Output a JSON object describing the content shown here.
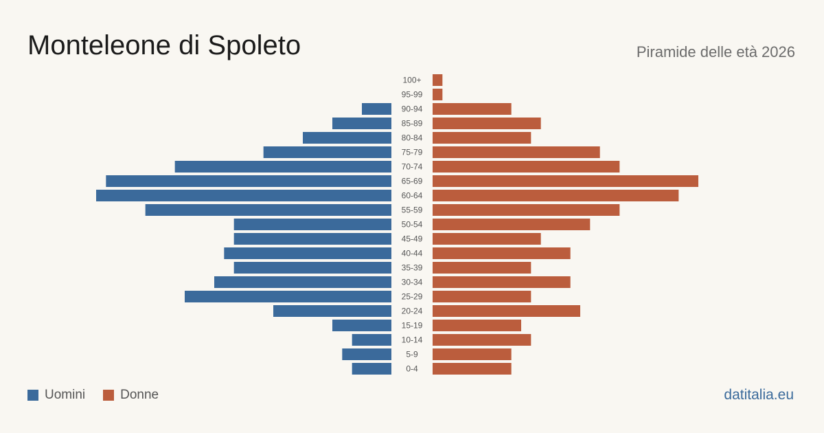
{
  "header": {
    "title": "Monteleone di Spoleto",
    "subtitle": "Piramide delle età 2026"
  },
  "legend": {
    "men_label": "Uomini",
    "women_label": "Donne"
  },
  "footer": {
    "source": "datitalia.eu"
  },
  "colors": {
    "men": "#3b6a9b",
    "women": "#bb5d3d",
    "background": "#f9f7f2"
  },
  "chart_data": {
    "type": "bar",
    "orientation": "horizontal-pyramid",
    "title": "Monteleone di Spoleto",
    "subtitle": "Piramide delle età 2026",
    "categories": [
      "100+",
      "95-99",
      "90-94",
      "85-89",
      "80-84",
      "75-79",
      "70-74",
      "65-69",
      "60-64",
      "55-59",
      "50-54",
      "45-49",
      "40-44",
      "35-39",
      "30-34",
      "25-29",
      "20-24",
      "15-19",
      "10-14",
      "5-9",
      "0-4"
    ],
    "series": [
      {
        "name": "Uomini",
        "side": "left",
        "values": [
          0,
          0,
          3,
          6,
          9,
          13,
          22,
          29,
          30,
          25,
          16,
          16,
          17,
          16,
          18,
          21,
          12,
          6,
          4,
          5,
          4
        ]
      },
      {
        "name": "Donne",
        "side": "right",
        "values": [
          1,
          1,
          8,
          11,
          10,
          17,
          19,
          27,
          25,
          19,
          16,
          11,
          14,
          10,
          14,
          10,
          15,
          9,
          10,
          8,
          8
        ]
      }
    ],
    "axis_max": 30,
    "grid": false,
    "legend_position": "bottom-left"
  }
}
